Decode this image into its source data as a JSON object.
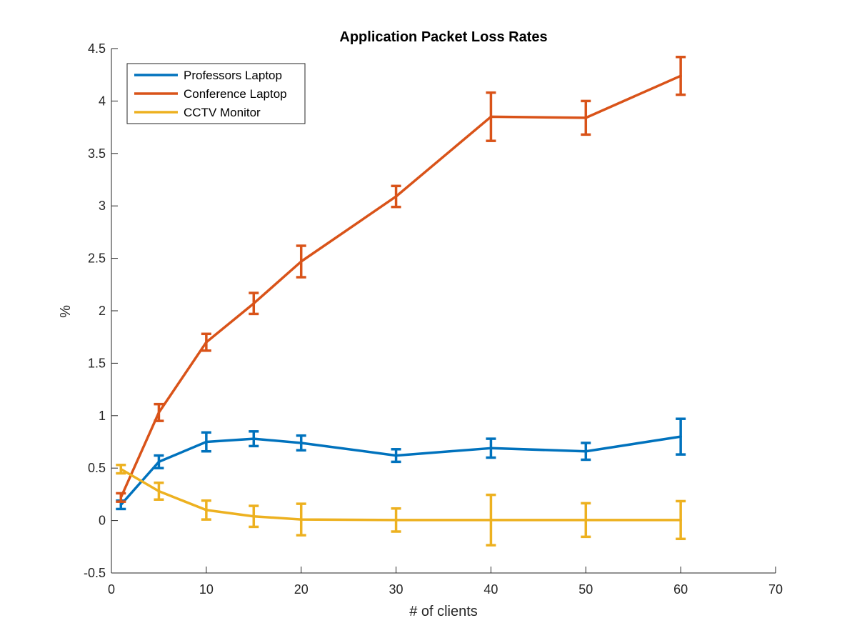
{
  "chart_data": {
    "type": "line",
    "title": "Application Packet Loss Rates",
    "xlabel": "# of clients",
    "ylabel": "%",
    "xlim": [
      0,
      70
    ],
    "ylim": [
      -0.5,
      4.5
    ],
    "xticks": [
      0,
      10,
      20,
      30,
      40,
      50,
      60,
      70
    ],
    "yticks": [
      -0.5,
      0,
      0.5,
      1,
      1.5,
      2,
      2.5,
      3,
      3.5,
      4,
      4.5
    ],
    "xtick_labels": [
      "0",
      "10",
      "20",
      "30",
      "40",
      "50",
      "60",
      "70"
    ],
    "ytick_labels": [
      "-0.5",
      "0",
      "0.5",
      "1",
      "1.5",
      "2",
      "2.5",
      "3",
      "3.5",
      "4",
      "4.5"
    ],
    "grid": false,
    "legend_position": "top-left",
    "x": [
      1,
      5,
      10,
      15,
      20,
      30,
      40,
      50,
      60
    ],
    "series": [
      {
        "name": "Professors Laptop",
        "color": "#0072BD",
        "values": [
          0.15,
          0.56,
          0.75,
          0.78,
          0.74,
          0.62,
          0.69,
          0.66,
          0.8
        ],
        "errors": [
          0.04,
          0.06,
          0.09,
          0.07,
          0.07,
          0.06,
          0.09,
          0.08,
          0.17
        ]
      },
      {
        "name": "Conference Laptop",
        "color": "#D95319",
        "values": [
          0.22,
          1.03,
          1.7,
          2.07,
          2.47,
          3.09,
          3.85,
          3.84,
          4.24
        ],
        "errors": [
          0.04,
          0.08,
          0.08,
          0.1,
          0.15,
          0.1,
          0.23,
          0.16,
          0.18
        ]
      },
      {
        "name": "CCTV Monitor",
        "color": "#EDB120",
        "values": [
          0.49,
          0.28,
          0.1,
          0.04,
          0.01,
          0.005,
          0.005,
          0.005,
          0.005
        ],
        "errors": [
          0.04,
          0.08,
          0.09,
          0.1,
          0.15,
          0.11,
          0.24,
          0.16,
          0.18
        ]
      }
    ]
  }
}
